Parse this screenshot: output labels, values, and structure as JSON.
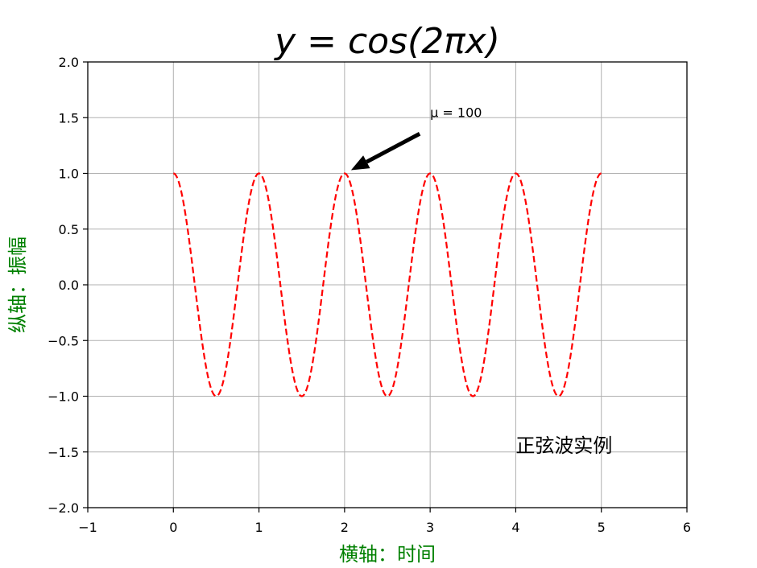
{
  "chart_data": {
    "type": "line",
    "title": "y = cos(2πx)",
    "xlabel": "横轴：时间",
    "ylabel": "纵轴：振幅",
    "xlim": [
      -1,
      6
    ],
    "ylim": [
      -2.0,
      2.0
    ],
    "xticks": [
      -1,
      0,
      1,
      2,
      3,
      4,
      5,
      6
    ],
    "xtick_labels": [
      "−1",
      "0",
      "1",
      "2",
      "3",
      "4",
      "5",
      "6"
    ],
    "yticks": [
      -2.0,
      -1.5,
      -1.0,
      -0.5,
      0.0,
      0.5,
      1.0,
      1.5,
      2.0
    ],
    "ytick_labels": [
      "−2.0",
      "−1.5",
      "−1.0",
      "−0.5",
      "0.0",
      "0.5",
      "1.0",
      "1.5",
      "2.0"
    ],
    "grid": true,
    "series": [
      {
        "function": "cos(2πx)",
        "x_range": [
          0,
          5
        ],
        "color": "#ff0000",
        "linestyle": "dashed"
      }
    ],
    "annotations": [
      {
        "text": "μ = 100",
        "xy": [
          2,
          1.0
        ],
        "xytext": [
          3,
          1.5
        ],
        "arrow": true
      }
    ],
    "texts": [
      {
        "text": "正弦波实例",
        "x": 4,
        "y": -1.5
      }
    ],
    "colors": {
      "line": "#ff0000",
      "axis_label": "#008000",
      "grid": "#b0b0b0"
    }
  }
}
